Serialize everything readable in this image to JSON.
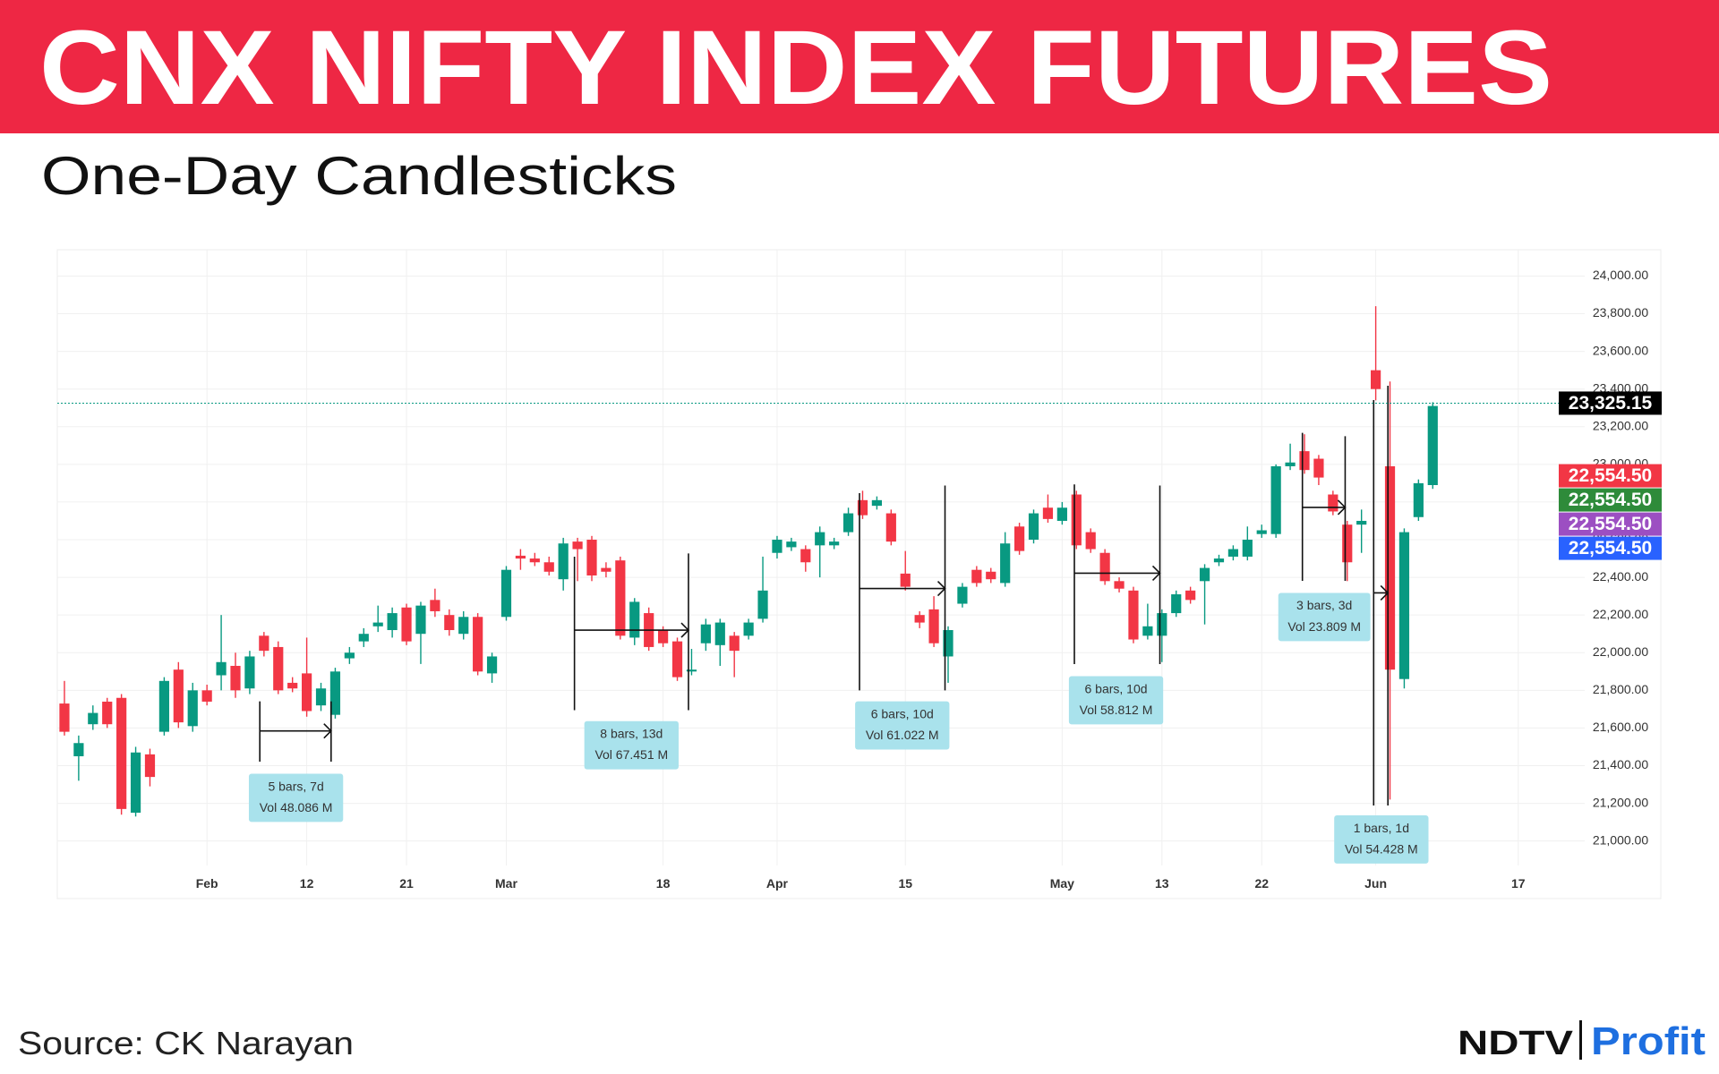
{
  "title": "CNX NIFTY INDEX FUTURES",
  "subtitle": "One-Day Candlesticks",
  "source": "Source: CK Narayan",
  "logo": {
    "brand": "NDTV",
    "product": "Profit"
  },
  "chart_data": {
    "type": "candlestick",
    "categories": [
      null,
      null,
      null,
      null,
      null,
      null,
      null,
      null,
      null,
      null,
      "Feb",
      null,
      null,
      null,
      null,
      null,
      null,
      "12",
      null,
      null,
      null,
      null,
      null,
      null,
      "21",
      null,
      null,
      null,
      null,
      null,
      null,
      "Mar",
      null,
      null,
      null,
      null,
      null,
      null,
      null,
      null,
      null,
      null,
      "18",
      null,
      null,
      null,
      null,
      null,
      null,
      null,
      "Apr",
      null,
      null,
      null,
      null,
      null,
      null,
      null,
      null,
      "15",
      null,
      null,
      null,
      null,
      null,
      null,
      null,
      null,
      null,
      null,
      "May",
      null,
      null,
      null,
      null,
      null,
      null,
      "13",
      null,
      null,
      null,
      null,
      null,
      null,
      "22",
      null,
      null,
      null,
      null,
      null,
      null,
      null,
      "Jun",
      null,
      null,
      null,
      null,
      null,
      null,
      null,
      null,
      null,
      "17",
      null,
      null
    ],
    "open": [
      21730,
      21450,
      21620,
      21740,
      21760,
      21150,
      21460,
      21580,
      21910,
      21610,
      21800,
      21880,
      21930,
      21810,
      22090,
      22030,
      21840,
      21890,
      21720,
      21670,
      21970,
      22060,
      22140,
      22120,
      22240,
      22100,
      22280,
      22200,
      22100,
      22190,
      21890,
      22190,
      22515,
      22500,
      22480,
      22390,
      22590,
      22600,
      22450,
      22490,
      22080,
      22210,
      22120,
      22060,
      21900,
      22050,
      22040,
      22090,
      22090,
      22180,
      22530,
      22560,
      22550,
      22570,
      22570,
      22640,
      22810,
      22780,
      22740,
      22420,
      22200,
      22230,
      21980,
      22260,
      22440,
      22430,
      22370,
      22670,
      22600,
      22770,
      22700,
      22840,
      22640,
      22530,
      22380,
      22330,
      22090,
      22090,
      22210,
      22330,
      22380,
      22480,
      22510,
      22510,
      22630,
      22630,
      22990,
      23070,
      23030,
      22840,
      22680,
      22680,
      23500,
      22990,
      21860,
      22720,
      22890,
      null,
      null,
      null,
      null,
      null,
      null,
      null,
      null
    ],
    "high": [
      21850,
      21560,
      21720,
      21760,
      21780,
      21500,
      21490,
      21870,
      21950,
      21840,
      21830,
      22200,
      22000,
      22010,
      22110,
      22060,
      21870,
      22080,
      21840,
      21920,
      22030,
      22130,
      22250,
      22240,
      22260,
      22270,
      22340,
      22230,
      22220,
      22210,
      22000,
      22460,
      22550,
      22530,
      22510,
      22610,
      22610,
      22620,
      22480,
      22510,
      22290,
      22240,
      22140,
      22080,
      22020,
      22180,
      22180,
      22110,
      22180,
      22510,
      22620,
      22610,
      22570,
      22670,
      22610,
      22770,
      22860,
      22830,
      22760,
      22540,
      22220,
      22300,
      22140,
      22370,
      22460,
      22450,
      22640,
      22690,
      22760,
      22840,
      22800,
      22860,
      22660,
      22550,
      22400,
      22350,
      22260,
      22230,
      22330,
      22350,
      22470,
      22520,
      22570,
      22670,
      22680,
      23000,
      23110,
      23160,
      23050,
      22860,
      22700,
      22760,
      23840,
      23440,
      22660,
      22920,
      23330,
      null,
      null,
      null,
      null,
      null,
      null,
      null,
      null
    ],
    "low": [
      21560,
      21320,
      21590,
      21600,
      21140,
      21130,
      21290,
      21560,
      21600,
      21580,
      21720,
      21800,
      21760,
      21780,
      21980,
      21780,
      21790,
      21660,
      21690,
      21650,
      21940,
      22030,
      22110,
      22080,
      22040,
      21940,
      22190,
      22090,
      22070,
      21880,
      21840,
      22170,
      22440,
      22460,
      22410,
      22330,
      22380,
      22380,
      22400,
      22070,
      22040,
      22010,
      22030,
      21850,
      21880,
      22010,
      21930,
      21870,
      22070,
      22160,
      22500,
      22540,
      22430,
      22400,
      22550,
      22620,
      22710,
      22760,
      22570,
      22330,
      22130,
      22030,
      21840,
      22240,
      22350,
      22370,
      22350,
      22520,
      22580,
      22690,
      22680,
      22550,
      22530,
      22360,
      22320,
      22050,
      22070,
      21950,
      22190,
      22260,
      22150,
      22460,
      22490,
      22490,
      22610,
      22610,
      22970,
      22950,
      22890,
      22730,
      22380,
      22530,
      23340,
      21220,
      21810,
      22700,
      22870,
      null,
      null,
      null,
      null,
      null,
      null,
      null,
      null
    ],
    "close": [
      21580,
      21520,
      21680,
      21620,
      21170,
      21470,
      21340,
      21850,
      21630,
      21800,
      21740,
      21950,
      21800,
      21980,
      22010,
      21800,
      21810,
      21690,
      21810,
      21900,
      22000,
      22100,
      22160,
      22210,
      22060,
      22250,
      22220,
      22120,
      22190,
      21900,
      21980,
      22440,
      22500,
      22480,
      22430,
      22580,
      22550,
      22410,
      22430,
      22090,
      22270,
      22030,
      22050,
      21870,
      21910,
      22150,
      22160,
      22010,
      22160,
      22330,
      22600,
      22590,
      22480,
      22640,
      22590,
      22740,
      22730,
      22810,
      22590,
      22350,
      22160,
      22050,
      22120,
      22350,
      22370,
      22390,
      22580,
      22540,
      22740,
      22710,
      22770,
      22570,
      22550,
      22380,
      22340,
      22070,
      22140,
      22210,
      22310,
      22280,
      22450,
      22500,
      22550,
      22600,
      22650,
      22990,
      23010,
      22970,
      22930,
      22750,
      22480,
      22700,
      23400,
      21910,
      22640,
      22900,
      23310,
      null,
      null,
      null,
      null,
      null,
      null,
      null,
      null
    ],
    "up_color": "#089981",
    "down_color": "#f23645",
    "ylim": [
      20870,
      24140
    ],
    "yticks": [
      {
        "value": 21000,
        "label": "21,000.00"
      },
      {
        "value": 21200,
        "label": "21,200.00"
      },
      {
        "value": 21400,
        "label": "21,400.00"
      },
      {
        "value": 21600,
        "label": "21,600.00"
      },
      {
        "value": 21800,
        "label": "21,800.00"
      },
      {
        "value": 22000,
        "label": "22,000.00"
      },
      {
        "value": 22200,
        "label": "22,200.00"
      },
      {
        "value": 22400,
        "label": "22,400.00"
      },
      {
        "value": 22600,
        "label": "22,600.00"
      },
      {
        "value": 22800,
        "label": "22,800.00"
      },
      {
        "value": 23000,
        "label": "23,000.00"
      },
      {
        "value": 23200,
        "label": "23,200.00"
      },
      {
        "value": 23400,
        "label": "23,400.00"
      },
      {
        "value": 23600,
        "label": "23,600.00"
      },
      {
        "value": 23800,
        "label": "23,800.00"
      },
      {
        "value": 24000,
        "label": "24,000.00"
      }
    ],
    "grid": true,
    "last_price": {
      "value": 23325.15,
      "label": "23,325.15",
      "color": "#089981"
    },
    "price_labels": [
      {
        "value": 22554.5,
        "label": "22,554.50",
        "color": "#f23645"
      },
      {
        "value": 22554.5,
        "label": "22,554.50",
        "color": "#2e8b3a"
      },
      {
        "value": 22554.5,
        "label": "22,554.50",
        "color": "#9c4fc2"
      },
      {
        "value": 22554.5,
        "label": "22,554.50",
        "color": "#2962ff"
      }
    ],
    "annotations": [
      {
        "lines": [
          "5 bars, 7d",
          "Vol 48.086 M"
        ]
      },
      {
        "lines": [
          "8 bars, 13d",
          "Vol 67.451 M"
        ]
      },
      {
        "lines": [
          "6 bars, 10d",
          "Vol 61.022 M"
        ]
      },
      {
        "lines": [
          "6 bars, 10d",
          "Vol 58.812 M"
        ]
      },
      {
        "lines": [
          "3 bars, 3d",
          "Vol 23.809 M"
        ]
      },
      {
        "lines": [
          "1 bars, 1d",
          "Vol 54.428 M"
        ]
      }
    ]
  }
}
